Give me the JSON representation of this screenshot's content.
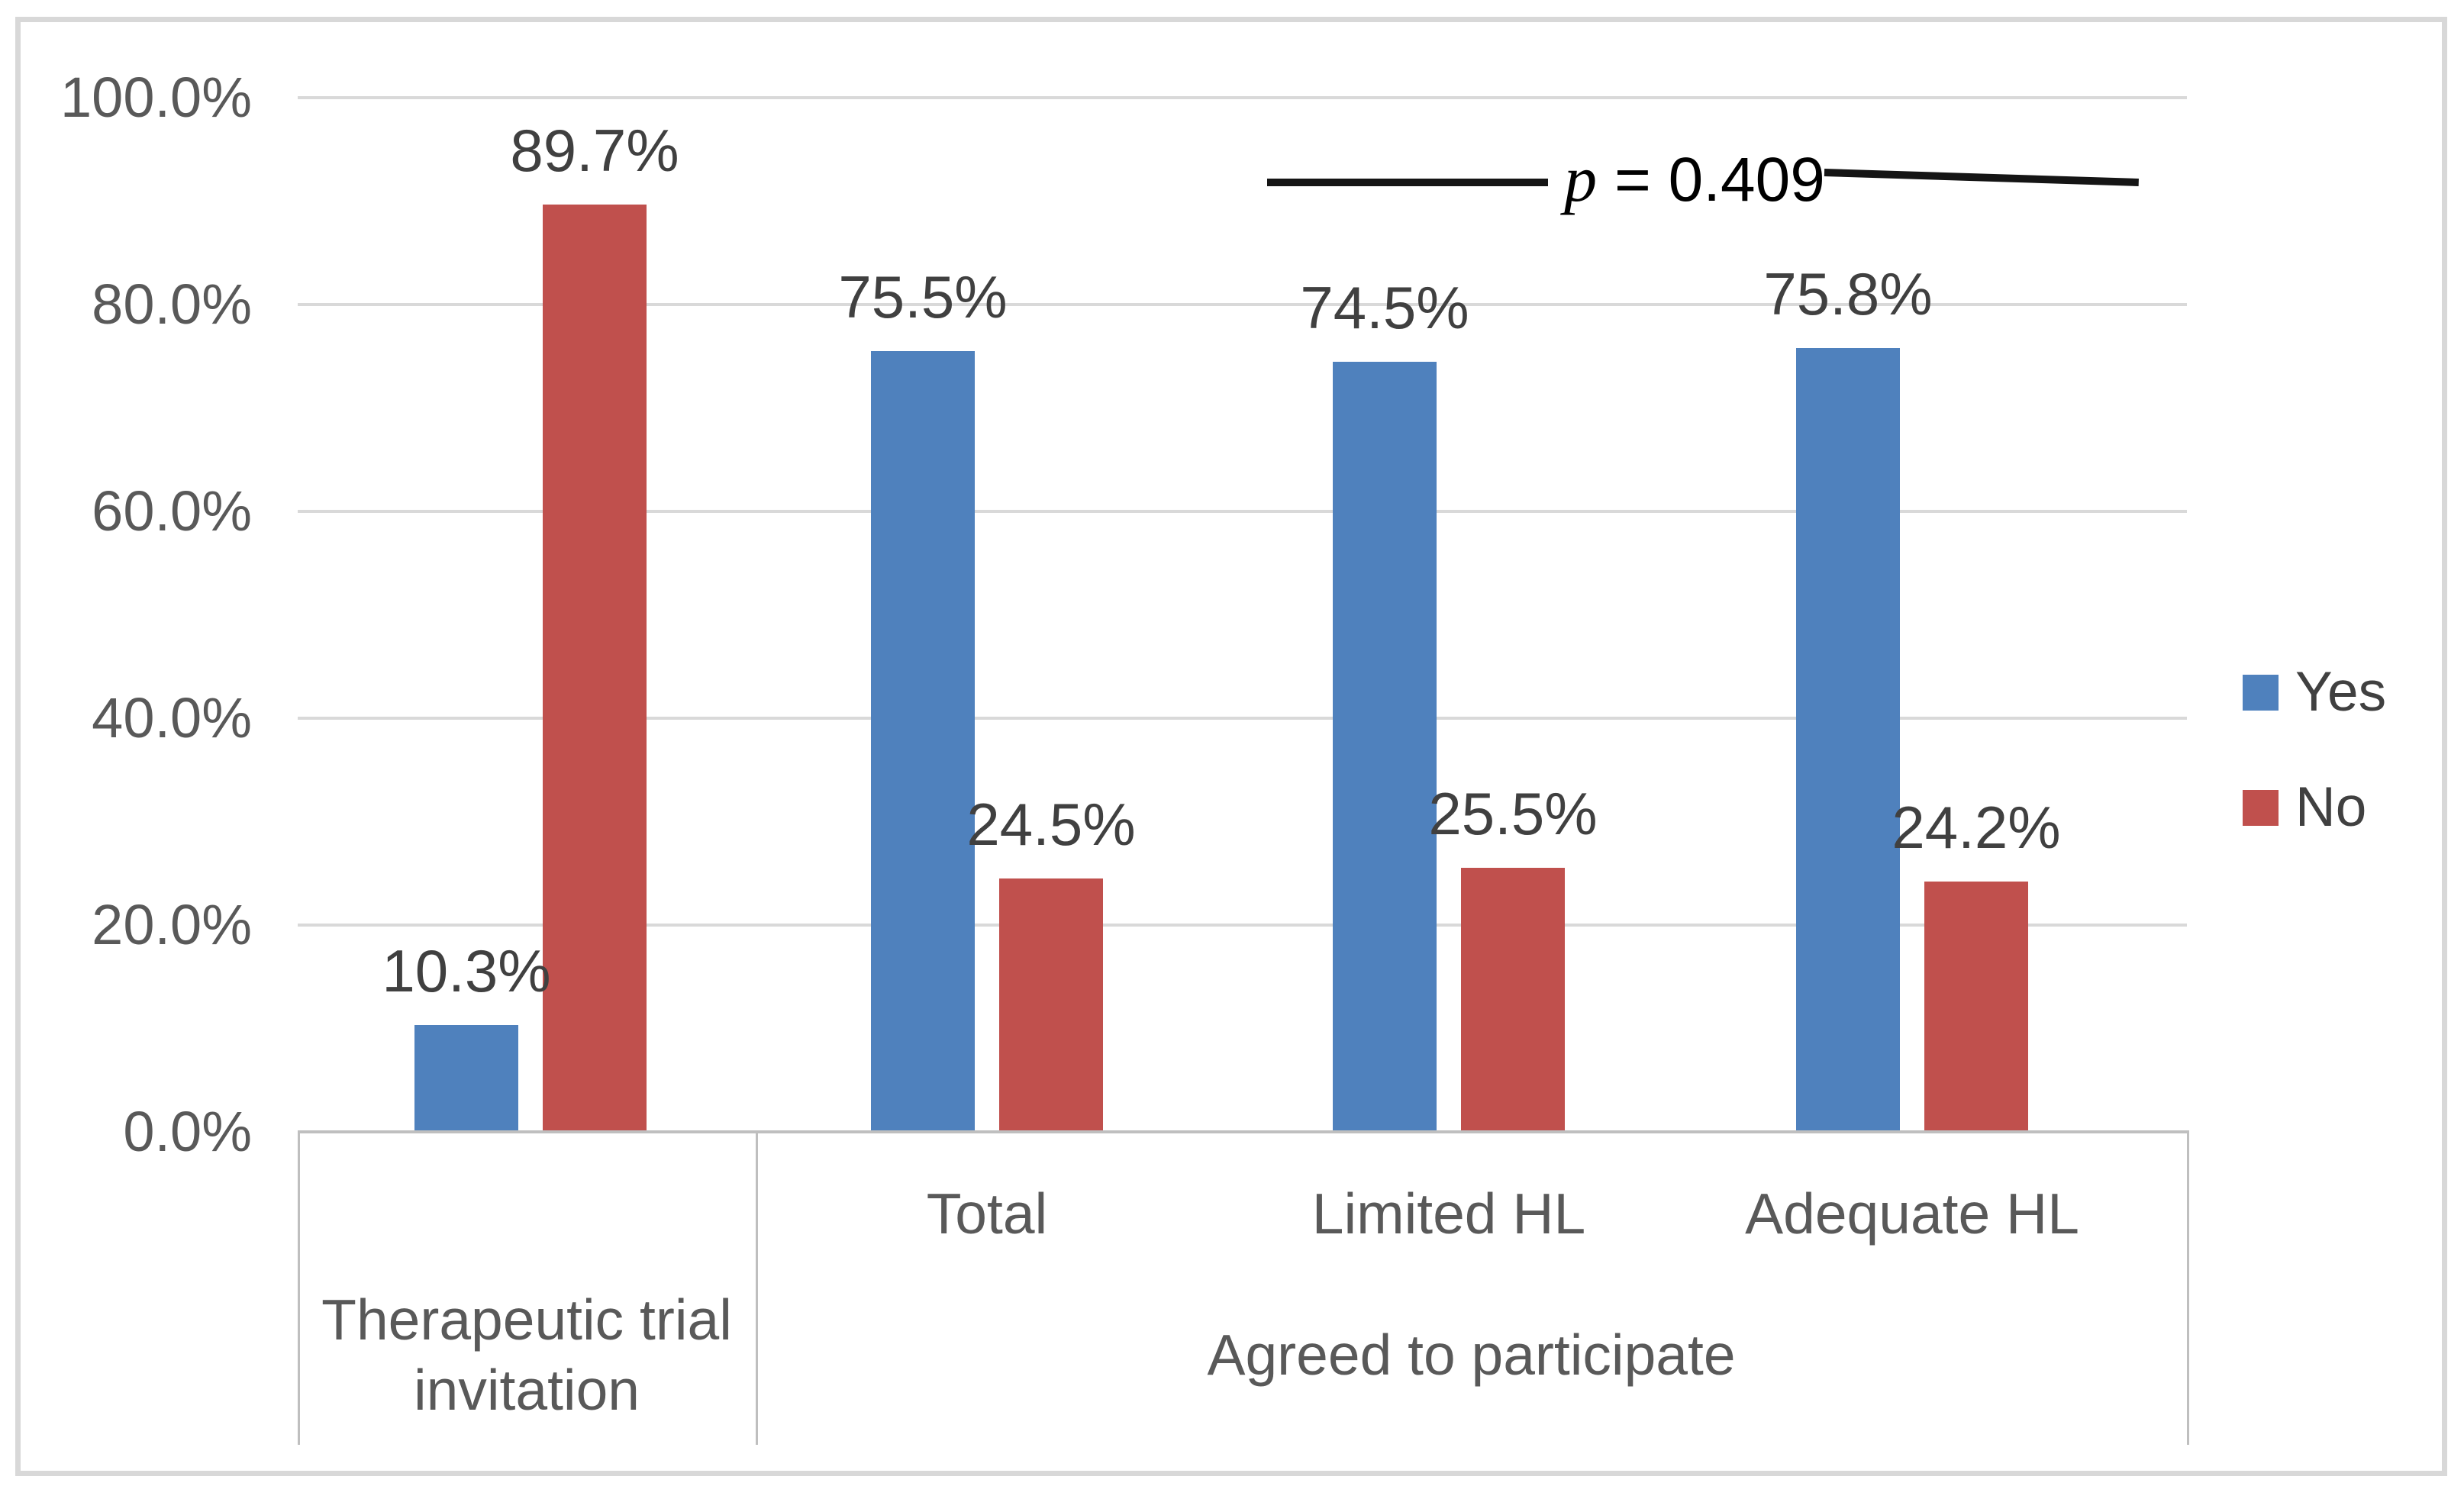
{
  "figure": {
    "background": "#ffffff",
    "border_color": "#d8d8d8"
  },
  "annotation": {
    "p": "p",
    "rest": " = 0.409",
    "full": "p = 0.409"
  },
  "legend": {
    "position": "right",
    "items": [
      {
        "label": "Yes",
        "color": "#4F81BD"
      },
      {
        "label": "No",
        "color": "#C0504D"
      }
    ]
  },
  "chart_data": {
    "type": "bar",
    "title": "",
    "xlabel": "",
    "ylabel": "",
    "categories": [
      "Therapeutic trial invitation",
      "Total",
      "Limited HL",
      "Adequate HL"
    ],
    "series": [
      {
        "name": "Yes",
        "color": "#4F81BD",
        "values": [
          10.3,
          75.5,
          74.5,
          75.8
        ],
        "labels": [
          "10.3%",
          "75.5%",
          "74.5%",
          "75.8%"
        ]
      },
      {
        "name": "No",
        "color": "#C0504D",
        "values": [
          89.7,
          24.5,
          25.5,
          24.2
        ],
        "labels": [
          "89.7%",
          "24.5%",
          "25.5%",
          "24.2%"
        ]
      }
    ],
    "axis_levels": {
      "inner": [
        "",
        "Total",
        "Limited HL",
        "Adequate HL"
      ],
      "outer": [
        {
          "label": "Therapeutic trial\ninvitation",
          "start": 0,
          "end": 0
        },
        {
          "label": "Agreed to participate",
          "start": 1,
          "end": 3
        }
      ]
    },
    "ylim": [
      0,
      100
    ],
    "ytick_labels": [
      "100.0%",
      "80.0%",
      "60.0%",
      "40.0%",
      "20.0%",
      "0.0%"
    ],
    "ytick_values": [
      100,
      80,
      60,
      40,
      20,
      0
    ],
    "grid": true,
    "legend_position": "right",
    "annotation": "p = 0.409"
  }
}
